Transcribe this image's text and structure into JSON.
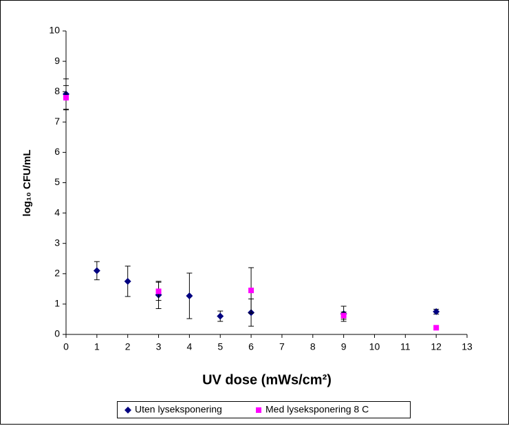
{
  "chart_data": {
    "type": "scatter",
    "xlabel": "UV dose (mWs/cm²)",
    "ylabel": "log₁₀ CFU/mL",
    "xlim": [
      0,
      13
    ],
    "xticks": [
      0,
      1,
      2,
      3,
      4,
      5,
      6,
      7,
      8,
      9,
      10,
      11,
      12,
      13
    ],
    "ylim": [
      0,
      10
    ],
    "yticks": [
      0,
      1,
      2,
      3,
      4,
      5,
      6,
      7,
      8,
      9,
      10
    ],
    "series": [
      {
        "name": "Uten lyseksponering",
        "color": "#000080",
        "marker": "diamond",
        "x": [
          0,
          1,
          2,
          3,
          4,
          5,
          6,
          9,
          12
        ],
        "values": [
          7.92,
          2.1,
          1.75,
          1.3,
          1.27,
          0.6,
          0.72,
          0.68,
          0.75
        ],
        "errors": [
          0.5,
          0.3,
          0.5,
          0.45,
          0.75,
          0.17,
          0.45,
          0.25,
          0.08
        ]
      },
      {
        "name": "Med lyseksponering 8 C",
        "color": "#ff00ff",
        "marker": "square",
        "x": [
          0,
          3,
          6,
          9,
          12
        ],
        "values": [
          7.8,
          1.42,
          1.45,
          0.62,
          0.22
        ],
        "errors": [
          0.4,
          0.3,
          0.75,
          0.12,
          null
        ]
      }
    ]
  }
}
